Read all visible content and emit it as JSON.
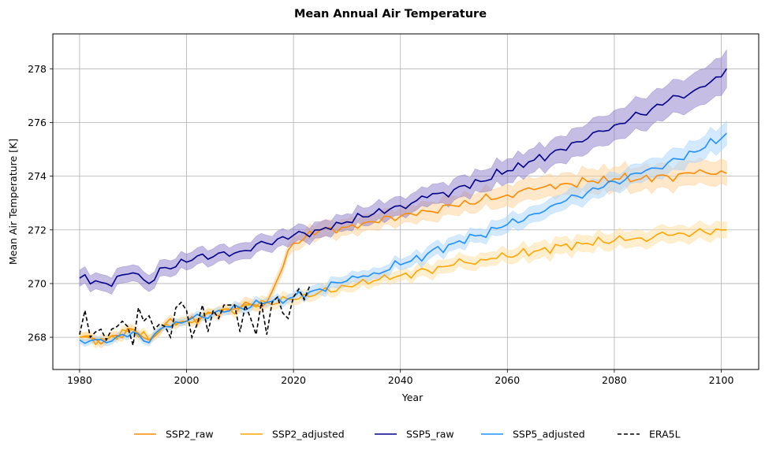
{
  "chart_data": {
    "type": "line",
    "title": "Mean Annual Air Temperature",
    "xlabel": "Year",
    "ylabel": "Mean Air Temperature [K]",
    "xlim": [
      1975,
      2107
    ],
    "ylim": [
      266.8,
      279.3
    ],
    "xticks": [
      1980,
      2000,
      2020,
      2040,
      2060,
      2080,
      2100
    ],
    "yticks": [
      268,
      270,
      272,
      274,
      276,
      278
    ],
    "grid": true,
    "legend_position": "bottom-center",
    "series": [
      {
        "name": "SSP2_raw",
        "color": "#ff8c00",
        "dashed": false,
        "band_color": "#ffcf94",
        "x": [
          1980,
          1985,
          1990,
          1993,
          1996,
          2000,
          2005,
          2010,
          2015,
          2020,
          2025,
          2030,
          2035,
          2040,
          2045,
          2050,
          2055,
          2060,
          2065,
          2070,
          2075,
          2080,
          2085,
          2090,
          2095,
          2100,
          2101
        ],
        "y": [
          268.0,
          267.9,
          268.3,
          267.9,
          268.5,
          268.6,
          268.9,
          269.1,
          269.3,
          271.5,
          272.0,
          272.1,
          272.3,
          272.5,
          272.7,
          272.9,
          273.1,
          273.3,
          273.5,
          273.7,
          273.8,
          273.9,
          273.9,
          274.0,
          274.1,
          274.2,
          274.1
        ],
        "band": [
          0.15,
          0.15,
          0.15,
          0.15,
          0.15,
          0.15,
          0.15,
          0.2,
          0.2,
          0.25,
          0.3,
          0.3,
          0.3,
          0.3,
          0.35,
          0.35,
          0.35,
          0.4,
          0.4,
          0.4,
          0.45,
          0.45,
          0.45,
          0.45,
          0.45,
          0.45,
          0.45
        ]
      },
      {
        "name": "SSP2_adjusted",
        "color": "#ffa500",
        "dashed": false,
        "band_color": "#ffdf9e",
        "x": [
          1980,
          1985,
          1990,
          1993,
          1996,
          2000,
          2005,
          2010,
          2015,
          2020,
          2025,
          2030,
          2035,
          2040,
          2045,
          2050,
          2055,
          2060,
          2065,
          2070,
          2075,
          2080,
          2085,
          2090,
          2095,
          2100,
          2101
        ],
        "y": [
          268.0,
          267.9,
          268.3,
          267.9,
          268.5,
          268.6,
          268.9,
          269.1,
          269.3,
          269.4,
          269.7,
          269.9,
          270.1,
          270.3,
          270.5,
          270.7,
          270.9,
          271.0,
          271.2,
          271.4,
          271.5,
          271.6,
          271.7,
          271.8,
          271.9,
          272.0,
          272.0
        ],
        "band": [
          0.15,
          0.15,
          0.15,
          0.15,
          0.15,
          0.15,
          0.15,
          0.15,
          0.2,
          0.2,
          0.2,
          0.2,
          0.2,
          0.2,
          0.25,
          0.25,
          0.25,
          0.25,
          0.3,
          0.3,
          0.3,
          0.3,
          0.3,
          0.3,
          0.3,
          0.3,
          0.3
        ]
      },
      {
        "name": "SSP5_raw",
        "color": "#00008b",
        "dashed": false,
        "band_color": "#8b7bc9",
        "x": [
          1980,
          1985,
          1990,
          1993,
          1996,
          2000,
          2003,
          2005,
          2010,
          2015,
          2020,
          2025,
          2030,
          2035,
          2040,
          2045,
          2050,
          2055,
          2060,
          2065,
          2070,
          2075,
          2080,
          2085,
          2090,
          2095,
          2100,
          2101
        ],
        "y": [
          270.2,
          270.0,
          270.4,
          270.0,
          270.6,
          270.8,
          271.1,
          271.0,
          271.2,
          271.5,
          271.8,
          272.0,
          272.3,
          272.6,
          272.9,
          273.2,
          273.5,
          273.8,
          274.2,
          274.6,
          275.0,
          275.4,
          275.9,
          276.3,
          276.8,
          277.2,
          277.7,
          278.0
        ],
        "band": [
          0.3,
          0.3,
          0.3,
          0.3,
          0.3,
          0.3,
          0.3,
          0.3,
          0.3,
          0.3,
          0.3,
          0.3,
          0.3,
          0.35,
          0.35,
          0.35,
          0.4,
          0.4,
          0.45,
          0.45,
          0.5,
          0.55,
          0.55,
          0.6,
          0.6,
          0.65,
          0.7,
          0.7
        ]
      },
      {
        "name": "SSP5_adjusted",
        "color": "#1e90ff",
        "dashed": false,
        "band_color": "#a8d4ff",
        "x": [
          1980,
          1985,
          1990,
          1993,
          1996,
          2000,
          2005,
          2010,
          2015,
          2020,
          2025,
          2030,
          2035,
          2040,
          2045,
          2050,
          2055,
          2060,
          2065,
          2070,
          2075,
          2080,
          2085,
          2090,
          2095,
          2100,
          2101
        ],
        "y": [
          267.9,
          267.8,
          268.2,
          267.8,
          268.4,
          268.6,
          268.9,
          269.1,
          269.3,
          269.5,
          269.8,
          270.1,
          270.4,
          270.7,
          271.1,
          271.5,
          271.8,
          272.2,
          272.6,
          273.0,
          273.4,
          273.8,
          274.1,
          274.5,
          274.9,
          275.4,
          275.6
        ],
        "band": [
          0.12,
          0.12,
          0.12,
          0.12,
          0.12,
          0.12,
          0.12,
          0.15,
          0.15,
          0.15,
          0.2,
          0.2,
          0.2,
          0.2,
          0.25,
          0.25,
          0.25,
          0.3,
          0.3,
          0.3,
          0.35,
          0.35,
          0.35,
          0.4,
          0.4,
          0.45,
          0.45
        ]
      },
      {
        "name": "ERA5L",
        "color": "#000000",
        "dashed": true,
        "x": [
          1980,
          1981,
          1982,
          1983,
          1984,
          1985,
          1986,
          1987,
          1988,
          1989,
          1990,
          1991,
          1992,
          1993,
          1994,
          1995,
          1996,
          1997,
          1998,
          1999,
          2000,
          2001,
          2002,
          2003,
          2004,
          2005,
          2006,
          2007,
          2008,
          2009,
          2010,
          2011,
          2012,
          2013,
          2014,
          2015,
          2016,
          2017,
          2018,
          2019,
          2020,
          2021,
          2022,
          2023
        ],
        "y": [
          268.1,
          269.0,
          268.0,
          268.2,
          268.3,
          267.9,
          268.3,
          268.4,
          268.6,
          268.4,
          267.7,
          269.1,
          268.6,
          268.8,
          268.3,
          268.5,
          268.4,
          268.0,
          269.1,
          269.3,
          269.0,
          268.0,
          268.5,
          269.2,
          268.2,
          269.0,
          268.7,
          269.2,
          269.2,
          269.2,
          268.2,
          269.2,
          268.7,
          268.1,
          269.3,
          268.1,
          269.3,
          269.5,
          268.9,
          268.7,
          269.5,
          269.8,
          269.4,
          269.9
        ]
      }
    ]
  }
}
